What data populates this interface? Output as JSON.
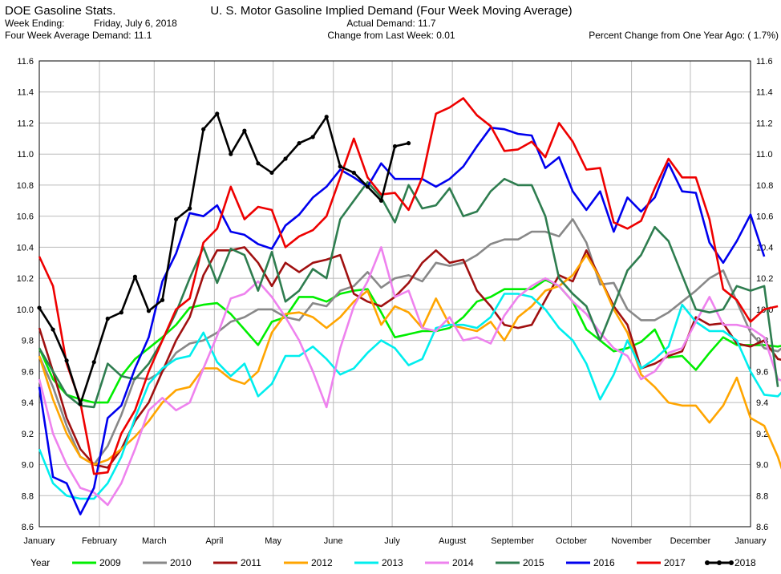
{
  "header": {
    "app_title": "DOE Gasoline Stats.",
    "week_ending_label": "Week Ending:",
    "week_ending_value": "Friday, July 6, 2018",
    "avg_demand_text": "Four Week Average Demand: 11.1",
    "chart_title": "U. S. Motor Gasoline Implied Demand (Four Week Moving Average)",
    "actual_demand_text": "Actual Demand: 11.7",
    "change_text": "Change from Last Week: 0.01",
    "pct_change_text": "Percent Change from One Year Ago: ( 1.7%)"
  },
  "chart_data": {
    "type": "line",
    "title": "U. S. Motor Gasoline Implied Demand (Four Week Moving Average)",
    "x_unit": "week of year",
    "xlim": [
      1,
      53
    ],
    "ylim": [
      8.6,
      11.6
    ],
    "yticks": [
      "8.6",
      "8.8",
      "9.0",
      "9.2",
      "9.4",
      "9.6",
      "9.8",
      "10.0",
      "10.2",
      "10.4",
      "10.6",
      "10.8",
      "11.0",
      "11.2",
      "11.4",
      "11.6"
    ],
    "xticks": [
      {
        "label": "January",
        "week": 1
      },
      {
        "label": "February",
        "week": 5.4
      },
      {
        "label": "March",
        "week": 9.4
      },
      {
        "label": "April",
        "week": 13.8
      },
      {
        "label": "May",
        "week": 18.1
      },
      {
        "label": "June",
        "week": 22.5
      },
      {
        "label": "July",
        "week": 26.8
      },
      {
        "label": "August",
        "week": 31.2
      },
      {
        "label": "September",
        "week": 35.6
      },
      {
        "label": "October",
        "week": 39.9
      },
      {
        "label": "November",
        "week": 44.3
      },
      {
        "label": "December",
        "week": 48.6
      },
      {
        "label": "January",
        "week": 53
      }
    ],
    "grid": true,
    "legend": {
      "position": "bottom",
      "title": "Year"
    },
    "series": [
      {
        "name": "2009",
        "color": "#00ee00",
        "values": [
          9.75,
          9.55,
          9.45,
          9.42,
          9.4,
          9.4,
          9.57,
          9.68,
          9.75,
          9.82,
          9.9,
          10.01,
          10.03,
          10.04,
          9.97,
          9.87,
          9.77,
          9.92,
          9.95,
          10.08,
          10.08,
          10.05,
          10.1,
          10.12,
          10.13,
          9.98,
          9.82,
          9.84,
          9.86,
          9.86,
          9.88,
          9.95,
          10.05,
          10.08,
          10.13,
          10.13,
          10.13,
          10.19,
          10.15,
          10.05,
          9.87,
          9.8,
          9.73,
          9.75,
          9.79,
          9.87,
          9.69,
          9.7,
          9.61,
          9.72,
          9.82,
          9.77,
          9.77,
          9.77,
          9.76,
          9.78,
          9.82,
          9.78
        ]
      },
      {
        "name": "2010",
        "color": "#888888",
        "values": [
          9.7,
          9.5,
          9.25,
          9.05,
          9.0,
          9.12,
          9.32,
          9.56,
          9.55,
          9.6,
          9.72,
          9.78,
          9.8,
          9.85,
          9.92,
          9.95,
          10.0,
          10.0,
          9.95,
          9.93,
          10.04,
          10.02,
          10.12,
          10.15,
          10.24,
          10.14,
          10.2,
          10.22,
          10.18,
          10.3,
          10.28,
          10.3,
          10.35,
          10.42,
          10.45,
          10.45,
          10.5,
          10.5,
          10.47,
          10.58,
          10.43,
          10.16,
          10.17,
          10.0,
          9.93,
          9.93,
          9.98,
          10.05,
          10.12,
          10.2,
          10.25,
          10.05,
          9.85,
          9.75,
          9.73,
          9.8,
          10.0,
          9.89
        ]
      },
      {
        "name": "2011",
        "color": "#a01010",
        "values": [
          9.88,
          9.6,
          9.3,
          9.1,
          9.0,
          8.98,
          9.1,
          9.28,
          9.4,
          9.6,
          9.8,
          9.95,
          10.22,
          10.38,
          10.38,
          10.4,
          10.3,
          10.15,
          10.3,
          10.24,
          10.3,
          10.32,
          10.35,
          10.1,
          10.05,
          10.02,
          10.08,
          10.17,
          10.3,
          10.38,
          10.3,
          10.32,
          10.12,
          10.02,
          9.9,
          9.88,
          9.9,
          10.06,
          10.22,
          10.18,
          10.38,
          10.2,
          10.02,
          9.9,
          9.62,
          9.65,
          9.7,
          9.73,
          9.95,
          9.9,
          9.91,
          9.78,
          9.76,
          9.8,
          9.68,
          9.66,
          9.72,
          9.79
        ]
      },
      {
        "name": "2012",
        "color": "#ffa500",
        "values": [
          9.7,
          9.42,
          9.2,
          9.05,
          9.0,
          9.03,
          9.1,
          9.18,
          9.28,
          9.4,
          9.48,
          9.5,
          9.62,
          9.62,
          9.55,
          9.52,
          9.6,
          9.85,
          9.97,
          9.98,
          9.95,
          9.88,
          9.95,
          10.05,
          10.12,
          9.9,
          10.02,
          9.98,
          9.88,
          10.07,
          9.9,
          9.88,
          9.86,
          9.92,
          9.8,
          9.95,
          10.02,
          10.12,
          10.15,
          10.22,
          10.35,
          10.2,
          10.0,
          9.85,
          9.58,
          9.5,
          9.4,
          9.38,
          9.38,
          9.27,
          9.38,
          9.56,
          9.3,
          9.25,
          9.05,
          8.78,
          9.02,
          9.13
        ]
      },
      {
        "name": "2013",
        "color": "#00eeee",
        "values": [
          9.1,
          8.88,
          8.8,
          8.78,
          8.78,
          8.88,
          9.05,
          9.3,
          9.52,
          9.62,
          9.68,
          9.7,
          9.85,
          9.66,
          9.57,
          9.65,
          9.44,
          9.52,
          9.7,
          9.7,
          9.76,
          9.68,
          9.58,
          9.62,
          9.72,
          9.8,
          9.75,
          9.64,
          9.68,
          9.88,
          9.9,
          9.9,
          9.88,
          9.95,
          10.1,
          10.1,
          10.08,
          10.0,
          9.88,
          9.8,
          9.65,
          9.42,
          9.58,
          9.8,
          9.62,
          9.68,
          9.76,
          10.03,
          9.92,
          9.86,
          9.86,
          9.8,
          9.6,
          9.45,
          9.44,
          9.53,
          9.49,
          9.48
        ]
      },
      {
        "name": "2014",
        "color": "#ee82ee",
        "values": [
          9.55,
          9.2,
          9.0,
          8.85,
          8.82,
          8.74,
          8.88,
          9.1,
          9.35,
          9.43,
          9.35,
          9.4,
          9.62,
          9.83,
          10.07,
          10.1,
          10.18,
          10.08,
          9.95,
          9.8,
          9.6,
          9.37,
          9.75,
          10.02,
          10.18,
          10.4,
          10.08,
          10.12,
          9.88,
          9.86,
          9.95,
          9.8,
          9.82,
          9.78,
          9.96,
          10.08,
          10.15,
          10.2,
          10.15,
          10.05,
          9.97,
          9.85,
          9.75,
          9.7,
          9.55,
          9.6,
          9.72,
          9.75,
          9.92,
          10.08,
          9.9,
          9.9,
          9.88,
          9.82,
          9.55,
          9.52,
          9.6,
          9.75
        ]
      },
      {
        "name": "2015",
        "color": "#2e7d4f",
        "values": [
          9.75,
          9.6,
          9.45,
          9.38,
          9.37,
          9.65,
          9.57,
          9.55,
          9.65,
          9.8,
          9.98,
          10.2,
          10.4,
          10.17,
          10.39,
          10.35,
          10.12,
          10.37,
          10.05,
          10.12,
          10.26,
          10.2,
          10.58,
          10.7,
          10.82,
          10.72,
          10.56,
          10.8,
          10.65,
          10.67,
          10.78,
          10.6,
          10.63,
          10.76,
          10.84,
          10.8,
          10.8,
          10.6,
          10.2,
          10.1,
          10.02,
          9.8,
          10.02,
          10.25,
          10.35,
          10.53,
          10.44,
          10.22,
          10.0,
          9.98,
          10.0,
          10.15,
          10.12,
          10.15,
          9.5
        ]
      },
      {
        "name": "2016",
        "color": "#0000ee",
        "values": [
          9.5,
          8.92,
          8.88,
          8.68,
          8.85,
          9.3,
          9.38,
          9.62,
          9.82,
          10.18,
          10.36,
          10.62,
          10.6,
          10.67,
          10.5,
          10.48,
          10.42,
          10.39,
          10.54,
          10.61,
          10.72,
          10.79,
          10.9,
          10.85,
          10.79,
          10.94,
          10.84,
          10.84,
          10.84,
          10.79,
          10.84,
          10.92,
          11.05,
          11.17,
          11.16,
          11.13,
          11.12,
          10.91,
          10.98,
          10.76,
          10.64,
          10.76,
          10.5,
          10.72,
          10.63,
          10.72,
          10.94,
          10.76,
          10.75,
          10.43,
          10.3,
          10.44,
          10.61,
          10.34
        ]
      },
      {
        "name": "2017",
        "color": "#ee0000",
        "values": [
          10.34,
          10.15,
          9.65,
          9.4,
          8.94,
          8.95,
          9.2,
          9.35,
          9.6,
          9.8,
          10.0,
          10.07,
          10.43,
          10.52,
          10.79,
          10.58,
          10.66,
          10.64,
          10.4,
          10.47,
          10.51,
          10.6,
          10.85,
          11.1,
          10.85,
          10.74,
          10.75,
          10.64,
          10.85,
          11.26,
          11.3,
          11.36,
          11.25,
          11.18,
          11.02,
          11.03,
          11.08,
          10.98,
          11.2,
          11.08,
          10.9,
          10.91,
          10.56,
          10.52,
          10.57,
          10.78,
          10.97,
          10.85,
          10.85,
          10.58,
          10.13,
          10.06,
          9.92,
          10.0,
          10.02
        ]
      },
      {
        "name": "2018",
        "color": "#000000",
        "values": [
          10.01,
          9.87,
          9.67,
          9.39,
          9.66,
          9.94,
          9.98,
          10.21,
          9.99,
          10.06,
          10.58,
          10.65,
          11.16,
          11.26,
          11.0,
          11.15,
          10.94,
          10.88,
          10.97,
          11.07,
          11.11,
          11.24,
          10.92,
          10.88,
          10.79,
          10.7,
          11.05,
          11.07
        ]
      }
    ]
  }
}
